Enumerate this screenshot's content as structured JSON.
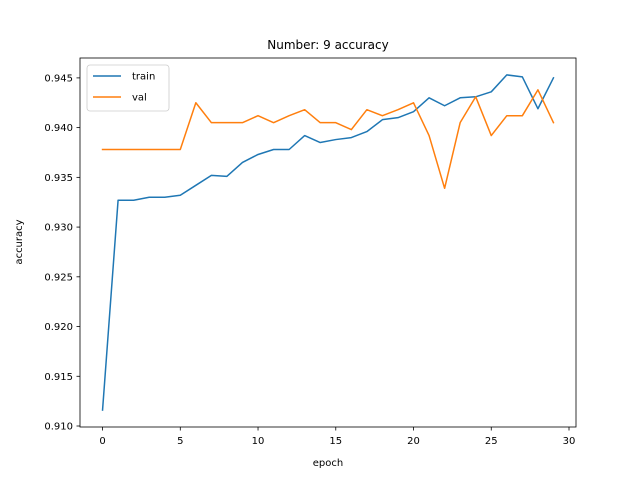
{
  "chart_data": {
    "type": "line",
    "title": "Number: 9 accuracy",
    "xlabel": "epoch",
    "ylabel": "accuracy",
    "xlim": [
      -1.45,
      30.45
    ],
    "ylim": [
      0.9099,
      0.947
    ],
    "xticks": [
      0,
      5,
      10,
      15,
      20,
      25,
      30
    ],
    "yticks": [
      0.91,
      0.915,
      0.92,
      0.925,
      0.93,
      0.935,
      0.94,
      0.945
    ],
    "xtick_labels": [
      "0",
      "5",
      "10",
      "15",
      "20",
      "25",
      "30"
    ],
    "ytick_labels": [
      "0.910",
      "0.915",
      "0.920",
      "0.925",
      "0.930",
      "0.935",
      "0.940",
      "0.945"
    ],
    "legend_position": "upper-left",
    "grid": false,
    "series": [
      {
        "name": "train",
        "color": "#1f77b4",
        "x": [
          0,
          1,
          2,
          3,
          4,
          5,
          6,
          7,
          8,
          9,
          10,
          11,
          12,
          13,
          14,
          15,
          16,
          17,
          18,
          19,
          20,
          21,
          22,
          23,
          24,
          25,
          26,
          27,
          28,
          29
        ],
        "values": [
          0.9116,
          0.9327,
          0.9327,
          0.933,
          0.933,
          0.9332,
          0.9342,
          0.9352,
          0.9351,
          0.9365,
          0.9373,
          0.9378,
          0.9378,
          0.9392,
          0.9385,
          0.9388,
          0.939,
          0.9396,
          0.9408,
          0.941,
          0.9416,
          0.943,
          0.9422,
          0.943,
          0.9431,
          0.9436,
          0.9453,
          0.9451,
          0.9419,
          0.945
        ]
      },
      {
        "name": "val",
        "color": "#ff7f0e",
        "x": [
          0,
          1,
          2,
          3,
          4,
          5,
          6,
          7,
          8,
          9,
          10,
          11,
          12,
          13,
          14,
          15,
          16,
          17,
          18,
          19,
          20,
          21,
          22,
          23,
          24,
          25,
          26,
          27,
          28,
          29
        ],
        "values": [
          0.9378,
          0.9378,
          0.9378,
          0.9378,
          0.9378,
          0.9378,
          0.9425,
          0.9405,
          0.9405,
          0.9405,
          0.9412,
          0.9405,
          0.9412,
          0.9418,
          0.9405,
          0.9405,
          0.9398,
          0.9418,
          0.9412,
          0.9418,
          0.9425,
          0.9392,
          0.9339,
          0.9405,
          0.9431,
          0.9392,
          0.9412,
          0.9412,
          0.9438,
          0.9405
        ]
      }
    ]
  }
}
